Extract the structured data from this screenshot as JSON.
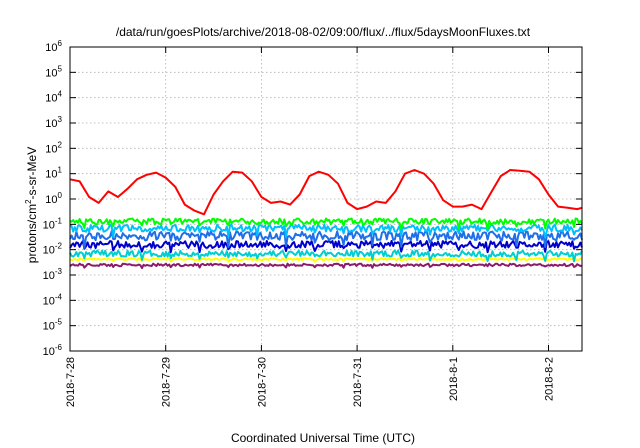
{
  "chart_data": {
    "type": "line",
    "title": "/data/run/goesPlots/archive/2018-08-02/09:00/flux/../flux/5daysMoonFluxes.txt",
    "xlabel": "Coordinated Universal Time (UTC)",
    "ylabel_base": "protons/cm",
    "ylabel_exp": "2",
    "ylabel_tail": "-s-sr-MeV",
    "yscale": "log",
    "ylim": [
      1e-06,
      1000000.0
    ],
    "xlim": [
      0,
      5.35
    ],
    "grid": true,
    "legend": "none",
    "yticks": [
      {
        "base": "10",
        "exp": "-6",
        "value": -6
      },
      {
        "base": "10",
        "exp": "-5",
        "value": -5
      },
      {
        "base": "10",
        "exp": "-4",
        "value": -4
      },
      {
        "base": "10",
        "exp": "-3",
        "value": -3
      },
      {
        "base": "10",
        "exp": "-2",
        "value": -2
      },
      {
        "base": "10",
        "exp": "-1",
        "value": -1
      },
      {
        "base": "10",
        "exp": "0",
        "value": 0
      },
      {
        "base": "10",
        "exp": "1",
        "value": 1
      },
      {
        "base": "10",
        "exp": "2",
        "value": 2
      },
      {
        "base": "10",
        "exp": "3",
        "value": 3
      },
      {
        "base": "10",
        "exp": "4",
        "value": 4
      },
      {
        "base": "10",
        "exp": "5",
        "value": 5
      },
      {
        "base": "10",
        "exp": "6",
        "value": 6
      }
    ],
    "xticks": [
      {
        "label": "2018-7-28",
        "value": 0
      },
      {
        "label": "2018-7-29",
        "value": 1
      },
      {
        "label": "2018-7-30",
        "value": 2
      },
      {
        "label": "2018-7-31",
        "value": 3
      },
      {
        "label": "2018-8-1",
        "value": 4
      },
      {
        "label": "2018-8-2",
        "value": 5
      }
    ],
    "series": [
      {
        "color": "#ff0000",
        "x": [
          0,
          0.1,
          0.2,
          0.3,
          0.4,
          0.5,
          0.6,
          0.7,
          0.8,
          0.9,
          1.0,
          1.1,
          1.2,
          1.3,
          1.4,
          1.5,
          1.6,
          1.7,
          1.8,
          1.9,
          2.0,
          2.1,
          2.2,
          2.3,
          2.4,
          2.5,
          2.6,
          2.7,
          2.8,
          2.9,
          3.0,
          3.1,
          3.2,
          3.3,
          3.4,
          3.5,
          3.6,
          3.7,
          3.8,
          3.9,
          4.0,
          4.1,
          4.2,
          4.3,
          4.4,
          4.5,
          4.6,
          4.7,
          4.8,
          4.9,
          5.0,
          5.1,
          5.2,
          5.3,
          5.35
        ],
        "y": [
          6,
          5,
          1.2,
          0.7,
          2,
          1.2,
          2.5,
          6,
          9,
          11,
          7,
          3,
          0.6,
          0.35,
          0.25,
          1.5,
          5,
          12,
          11,
          5,
          1.2,
          0.7,
          0.8,
          0.6,
          1.5,
          8,
          12,
          9,
          4,
          0.7,
          0.4,
          0.5,
          0.8,
          0.7,
          2,
          10,
          14,
          10,
          4,
          0.9,
          0.5,
          0.5,
          0.6,
          0.4,
          1.8,
          8,
          14,
          13,
          12,
          6,
          1.5,
          0.5,
          0.45,
          0.4,
          0.45
        ]
      },
      {
        "color": "#00ff00",
        "level": 0.13,
        "noise": 0.12
      },
      {
        "color": "#00bfff",
        "level": 0.07,
        "noise": 0.14
      },
      {
        "color": "#1e6fe8",
        "level": 0.035,
        "noise": 0.18
      },
      {
        "color": "#0000cd",
        "level": 0.016,
        "noise": 0.14
      },
      {
        "color": "#00ced1",
        "level": 0.007,
        "noise": 0.12
      },
      {
        "color": "#ffff00",
        "level": 0.0042,
        "noise": 0.04
      },
      {
        "color": "#8b1a6b",
        "level": 0.0025,
        "noise": 0.05
      }
    ]
  }
}
